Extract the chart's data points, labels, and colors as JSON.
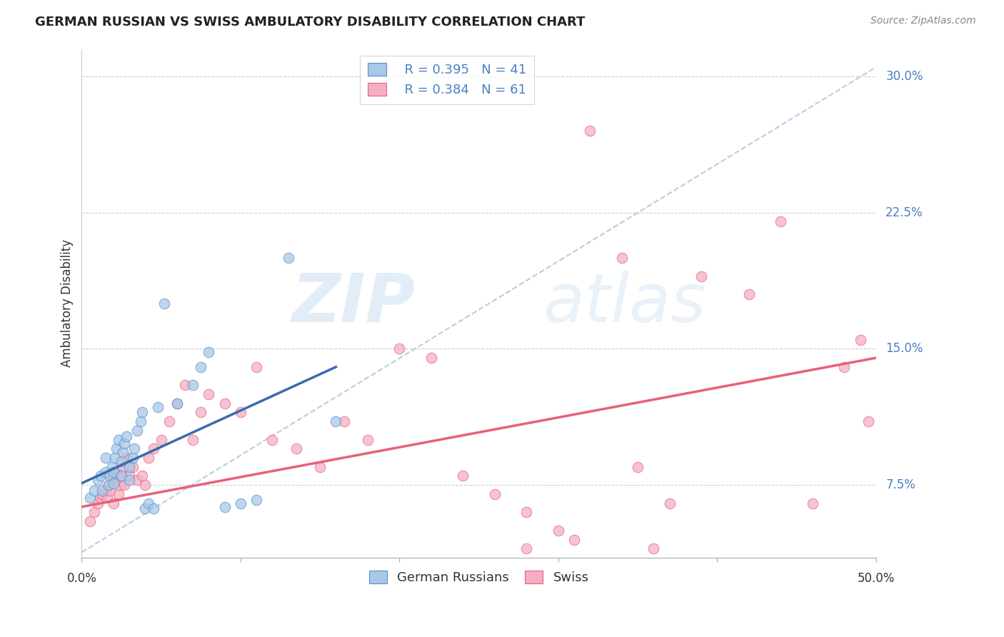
{
  "title": "GERMAN RUSSIAN VS SWISS AMBULATORY DISABILITY CORRELATION CHART",
  "source": "Source: ZipAtlas.com",
  "ylabel": "Ambulatory Disability",
  "yticks": [
    0.075,
    0.15,
    0.225,
    0.3
  ],
  "ytick_labels": [
    "7.5%",
    "15.0%",
    "22.5%",
    "30.0%"
  ],
  "xmin": 0.0,
  "xmax": 0.5,
  "ymin": 0.035,
  "ymax": 0.315,
  "legend_blue_r": "R = 0.395",
  "legend_blue_n": "N = 41",
  "legend_pink_r": "R = 0.384",
  "legend_pink_n": "N = 61",
  "legend_blue_label": "German Russians",
  "legend_pink_label": "Swiss",
  "blue_color": "#a8c8e8",
  "pink_color": "#f4afc4",
  "blue_edge_color": "#5590c8",
  "pink_edge_color": "#e8607a",
  "blue_line_color": "#3a6baf",
  "pink_line_color": "#e8607a",
  "dashed_line_color": "#b0c8e0",
  "watermark_zip": "ZIP",
  "watermark_atlas": "atlas",
  "blue_scatter_x": [
    0.005,
    0.008,
    0.01,
    0.012,
    0.013,
    0.015,
    0.015,
    0.017,
    0.018,
    0.019,
    0.02,
    0.02,
    0.021,
    0.022,
    0.023,
    0.025,
    0.025,
    0.026,
    0.027,
    0.028,
    0.03,
    0.03,
    0.032,
    0.033,
    0.035,
    0.037,
    0.038,
    0.04,
    0.042,
    0.045,
    0.048,
    0.052,
    0.06,
    0.07,
    0.075,
    0.08,
    0.09,
    0.1,
    0.11,
    0.13,
    0.16
  ],
  "blue_scatter_y": [
    0.068,
    0.072,
    0.078,
    0.08,
    0.072,
    0.082,
    0.09,
    0.075,
    0.08,
    0.085,
    0.076,
    0.082,
    0.09,
    0.095,
    0.1,
    0.08,
    0.088,
    0.093,
    0.098,
    0.102,
    0.078,
    0.085,
    0.09,
    0.095,
    0.105,
    0.11,
    0.115,
    0.062,
    0.065,
    0.062,
    0.118,
    0.175,
    0.12,
    0.13,
    0.14,
    0.148,
    0.063,
    0.065,
    0.067,
    0.2,
    0.11
  ],
  "pink_scatter_x": [
    0.005,
    0.008,
    0.01,
    0.012,
    0.013,
    0.015,
    0.016,
    0.017,
    0.018,
    0.019,
    0.02,
    0.021,
    0.022,
    0.023,
    0.024,
    0.025,
    0.026,
    0.027,
    0.028,
    0.03,
    0.032,
    0.035,
    0.038,
    0.04,
    0.042,
    0.045,
    0.05,
    0.055,
    0.06,
    0.065,
    0.07,
    0.075,
    0.08,
    0.09,
    0.1,
    0.11,
    0.12,
    0.135,
    0.15,
    0.165,
    0.18,
    0.2,
    0.22,
    0.24,
    0.26,
    0.28,
    0.3,
    0.32,
    0.35,
    0.37,
    0.39,
    0.42,
    0.44,
    0.46,
    0.48,
    0.49,
    0.495,
    0.28,
    0.31,
    0.34,
    0.36
  ],
  "pink_scatter_y": [
    0.055,
    0.06,
    0.065,
    0.068,
    0.07,
    0.072,
    0.068,
    0.075,
    0.072,
    0.08,
    0.065,
    0.078,
    0.082,
    0.07,
    0.075,
    0.08,
    0.085,
    0.075,
    0.09,
    0.08,
    0.085,
    0.078,
    0.08,
    0.075,
    0.09,
    0.095,
    0.1,
    0.11,
    0.12,
    0.13,
    0.1,
    0.115,
    0.125,
    0.12,
    0.115,
    0.14,
    0.1,
    0.095,
    0.085,
    0.11,
    0.1,
    0.15,
    0.145,
    0.08,
    0.07,
    0.04,
    0.05,
    0.27,
    0.085,
    0.065,
    0.19,
    0.18,
    0.22,
    0.065,
    0.14,
    0.155,
    0.11,
    0.06,
    0.045,
    0.2,
    0.04
  ],
  "blue_line_x": [
    0.0,
    0.16
  ],
  "blue_line_y": [
    0.076,
    0.14
  ],
  "pink_line_x": [
    0.0,
    0.5
  ],
  "pink_line_y": [
    0.063,
    0.145
  ],
  "dash_line_x": [
    0.0,
    0.5
  ],
  "dash_line_y": [
    0.038,
    0.305
  ]
}
